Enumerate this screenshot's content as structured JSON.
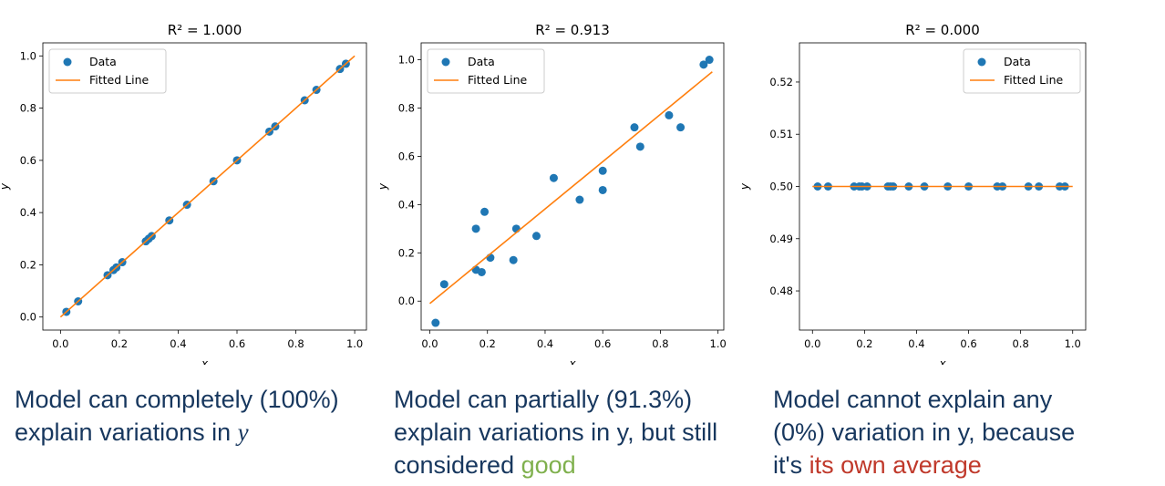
{
  "colors": {
    "data": "#1f77b4",
    "fit": "#ff7f0e",
    "caption": "#17375e",
    "good": "#7fb04d",
    "average": "#c0392b"
  },
  "chart_data": [
    {
      "type": "scatter",
      "title": "R² = 1.000",
      "xlabel": "x",
      "ylabel": "y",
      "xlim": [
        -0.06,
        1.04
      ],
      "ylim": [
        -0.05,
        1.05
      ],
      "xticks": [
        "0.0",
        "0.2",
        "0.4",
        "0.6",
        "0.8",
        "1.0"
      ],
      "yticks": [
        "0.0",
        "0.2",
        "0.4",
        "0.6",
        "0.8",
        "1.0"
      ],
      "legend": {
        "position": "top-left",
        "entries": [
          "Data",
          "Fitted Line"
        ]
      },
      "series": [
        {
          "name": "Data",
          "kind": "points",
          "x": [
            0.02,
            0.06,
            0.16,
            0.18,
            0.19,
            0.21,
            0.29,
            0.3,
            0.31,
            0.37,
            0.43,
            0.52,
            0.6,
            0.71,
            0.73,
            0.83,
            0.87,
            0.95,
            0.97
          ],
          "y": [
            0.02,
            0.06,
            0.16,
            0.18,
            0.19,
            0.21,
            0.29,
            0.3,
            0.31,
            0.37,
            0.43,
            0.52,
            0.6,
            0.71,
            0.73,
            0.83,
            0.87,
            0.95,
            0.97
          ]
        },
        {
          "name": "Fitted Line",
          "kind": "line",
          "x": [
            0.0,
            1.0
          ],
          "y": [
            0.0,
            1.0
          ]
        }
      ]
    },
    {
      "type": "scatter",
      "title": "R² = 0.913",
      "xlabel": "x",
      "ylabel": "y",
      "xlim": [
        -0.03,
        1.02
      ],
      "ylim": [
        -0.12,
        1.07
      ],
      "xticks": [
        "0.0",
        "0.2",
        "0.4",
        "0.6",
        "0.8",
        "1.0"
      ],
      "yticks": [
        "0.0",
        "0.2",
        "0.4",
        "0.6",
        "0.8",
        "1.0"
      ],
      "legend": {
        "position": "top-left",
        "entries": [
          "Data",
          "Fitted Line"
        ]
      },
      "series": [
        {
          "name": "Data",
          "kind": "points",
          "x": [
            0.02,
            0.05,
            0.16,
            0.16,
            0.18,
            0.19,
            0.21,
            0.29,
            0.3,
            0.37,
            0.43,
            0.52,
            0.6,
            0.6,
            0.71,
            0.73,
            0.83,
            0.87,
            0.95,
            0.97
          ],
          "y": [
            -0.09,
            0.07,
            0.13,
            0.3,
            0.12,
            0.37,
            0.18,
            0.17,
            0.3,
            0.27,
            0.51,
            0.42,
            0.46,
            0.54,
            0.72,
            0.64,
            0.77,
            0.72,
            0.98,
            1.0
          ]
        },
        {
          "name": "Fitted Line",
          "kind": "line",
          "x": [
            0.0,
            0.98
          ],
          "y": [
            -0.01,
            0.95
          ]
        }
      ]
    },
    {
      "type": "scatter",
      "title": "R² = 0.000",
      "xlabel": "x",
      "ylabel": "y",
      "xlim": [
        -0.05,
        1.05
      ],
      "ylim": [
        0.4725,
        0.5275
      ],
      "xticks": [
        "0.0",
        "0.2",
        "0.4",
        "0.6",
        "0.8",
        "1.0"
      ],
      "yticks": [
        "0.48",
        "0.49",
        "0.50",
        "0.51",
        "0.52"
      ],
      "legend": {
        "position": "top-right",
        "entries": [
          "Data",
          "Fitted Line"
        ]
      },
      "series": [
        {
          "name": "Data",
          "kind": "points",
          "x": [
            0.02,
            0.06,
            0.16,
            0.18,
            0.19,
            0.21,
            0.29,
            0.3,
            0.31,
            0.37,
            0.43,
            0.52,
            0.6,
            0.71,
            0.73,
            0.83,
            0.87,
            0.95,
            0.97
          ],
          "y": [
            0.5,
            0.5,
            0.5,
            0.5,
            0.5,
            0.5,
            0.5,
            0.5,
            0.5,
            0.5,
            0.5,
            0.5,
            0.5,
            0.5,
            0.5,
            0.5,
            0.5,
            0.5,
            0.5
          ]
        },
        {
          "name": "Fitted Line",
          "kind": "line",
          "x": [
            0.0,
            1.0
          ],
          "y": [
            0.5,
            0.5
          ]
        }
      ]
    }
  ],
  "captions": {
    "c1": {
      "line1": "Model can completely (100%)",
      "line2": "explain variations in ",
      "var": "y"
    },
    "c2": {
      "line1": "Model can partially (91.3%)",
      "line2": "explain variations in y, but still",
      "line3a": "considered ",
      "highlight": "good"
    },
    "c3": {
      "line1": "Model cannot explain any",
      "line2": "(0%) variation in y, because",
      "line3a": "it's ",
      "highlight": "its own average"
    }
  }
}
